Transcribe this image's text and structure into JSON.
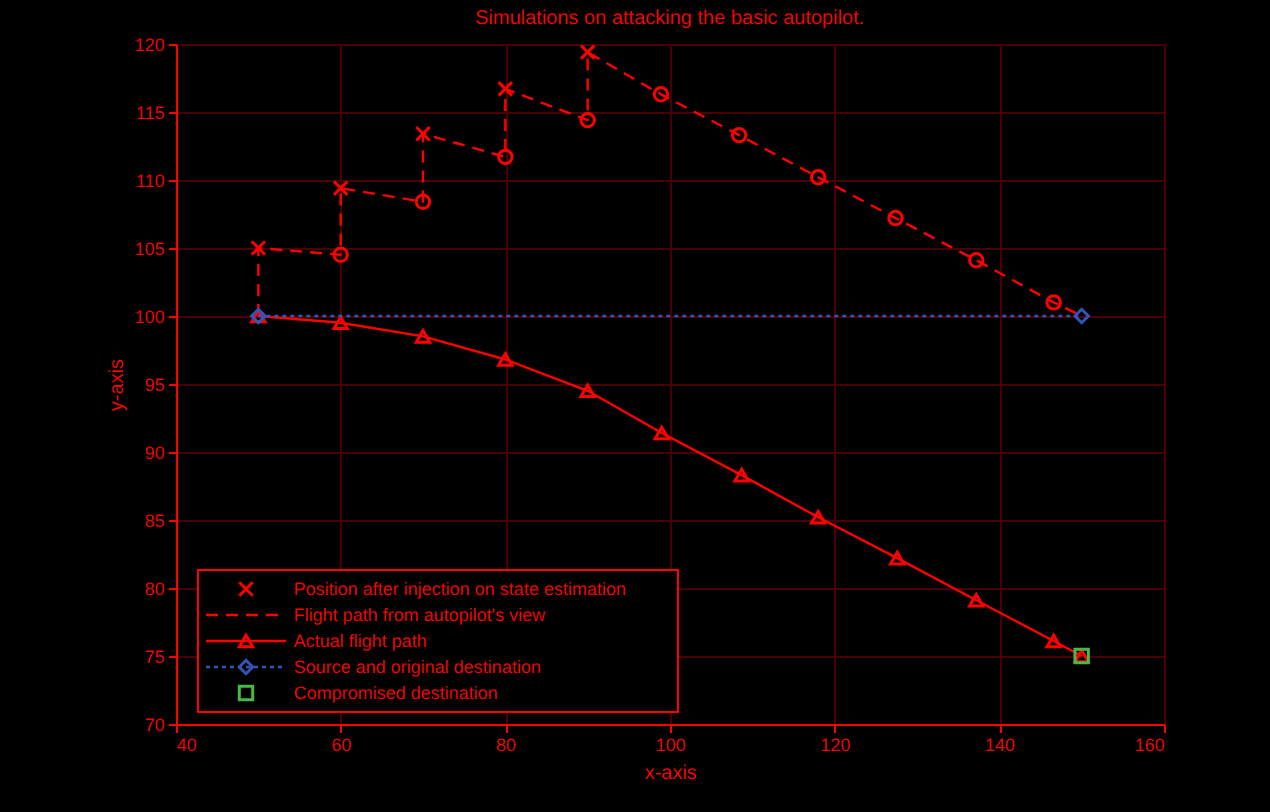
{
  "chart_data": {
    "type": "line",
    "title": "Simulations on attacking the basic autopilot.",
    "xlabel": "x-axis",
    "ylabel": "y-axis",
    "xlim": [
      40,
      160
    ],
    "xticks": [
      40,
      60,
      80,
      100,
      120,
      140,
      160
    ],
    "ylim": [
      70,
      120
    ],
    "yticks": [
      70,
      75,
      80,
      85,
      90,
      95,
      100,
      105,
      110,
      115,
      120
    ],
    "grid": true,
    "legend": "bottom left",
    "series": [
      {
        "name": "Position after injection on state estimation",
        "type": "scatter",
        "marker": "cross",
        "color": "#ff0000",
        "x": [
          50,
          60,
          70,
          80,
          90
        ],
        "values": [
          105,
          109.4,
          113.4,
          116.7,
          119.4
        ]
      },
      {
        "name": "Flight path from autopilot's view",
        "marker": "none",
        "line_style": "dashed",
        "color": "#ff0000",
        "x": [
          50,
          50,
          60,
          60,
          70,
          70,
          80,
          80,
          90,
          90,
          98.9,
          108.4,
          118,
          127.4,
          137.2,
          146.6,
          150
        ],
        "values": [
          100,
          105,
          104.5,
          109.4,
          108.4,
          113.4,
          111.7,
          116.7,
          114.4,
          119.4,
          116.3,
          113.3,
          110.2,
          107.2,
          104.1,
          101,
          100
        ]
      },
      {
        "type": "scatter",
        "marker": "circle",
        "color": "#ff0000",
        "x": [
          60,
          70,
          80,
          90,
          98.9,
          108.4,
          118,
          127.4,
          137.2,
          146.6
        ],
        "values": [
          104.5,
          108.4,
          111.7,
          114.4,
          116.3,
          113.3,
          110.2,
          107.2,
          104.1,
          101
        ]
      },
      {
        "name": "Actual flight path",
        "marker": "triangle",
        "line_style": "solid",
        "color": "#ff0000",
        "x": [
          50,
          60,
          70,
          80,
          90,
          99,
          108.7,
          118,
          127.6,
          137.2,
          146.6,
          150
        ],
        "values": [
          100,
          99.5,
          98.5,
          96.8,
          94.5,
          91.4,
          88.3,
          85.2,
          82.2,
          79.1,
          76.1,
          75
        ]
      },
      {
        "name": "Source and original destination",
        "marker": "diamond",
        "line_style": "dotted",
        "color": "#3355bb",
        "x": [
          50,
          150
        ],
        "values": [
          100,
          100
        ]
      },
      {
        "name": "Compromised destination",
        "type": "scatter",
        "marker": "square",
        "color": "#44bb44",
        "x": [
          150
        ],
        "values": [
          75
        ]
      }
    ]
  }
}
